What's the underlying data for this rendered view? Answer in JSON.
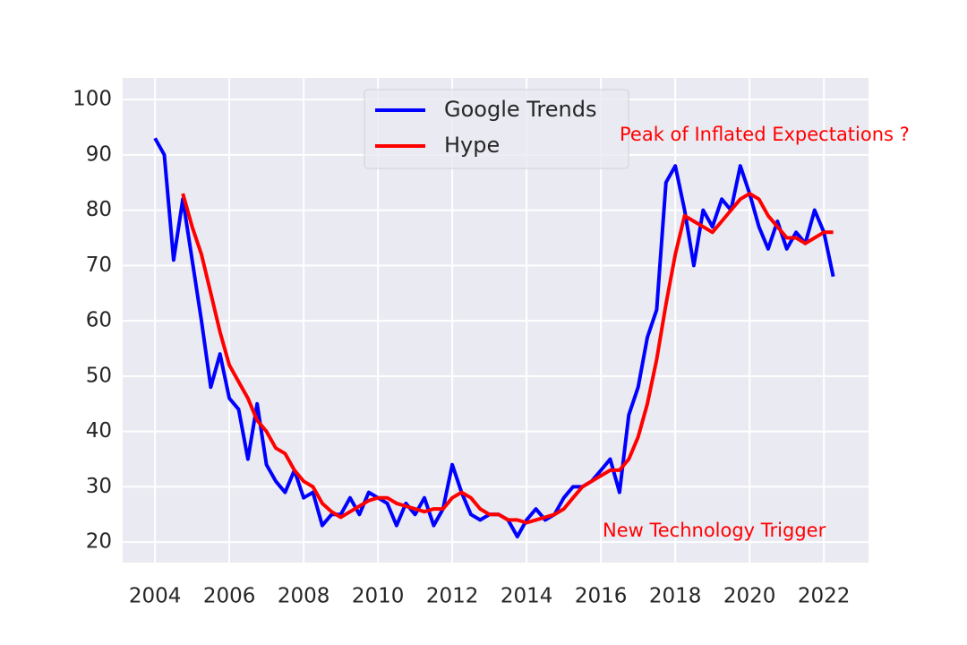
{
  "chart_data": {
    "type": "line",
    "x": [
      2004.0,
      2004.25,
      2004.5,
      2004.75,
      2005.0,
      2005.25,
      2005.5,
      2005.75,
      2006.0,
      2006.25,
      2006.5,
      2006.75,
      2007.0,
      2007.25,
      2007.5,
      2007.75,
      2008.0,
      2008.25,
      2008.5,
      2008.75,
      2009.0,
      2009.25,
      2009.5,
      2009.75,
      2010.0,
      2010.25,
      2010.5,
      2010.75,
      2011.0,
      2011.25,
      2011.5,
      2011.75,
      2012.0,
      2012.25,
      2012.5,
      2012.75,
      2013.0,
      2013.25,
      2013.5,
      2013.75,
      2014.0,
      2014.25,
      2014.5,
      2014.75,
      2015.0,
      2015.25,
      2015.5,
      2015.75,
      2016.0,
      2016.25,
      2016.5,
      2016.75,
      2017.0,
      2017.25,
      2017.5,
      2017.75,
      2018.0,
      2018.25,
      2018.5,
      2018.75,
      2019.0,
      2019.25,
      2019.5,
      2019.75,
      2020.0,
      2020.25,
      2020.5,
      2020.75,
      2021.0,
      2021.25,
      2021.5,
      2021.75,
      2022.0,
      2022.25
    ],
    "series": [
      {
        "name": "Google Trends",
        "color": "#0000ff",
        "values": [
          93,
          90,
          71,
          82,
          71,
          60,
          48,
          54,
          46,
          44,
          35,
          45,
          34,
          31,
          29,
          33,
          28,
          29,
          23,
          25,
          25,
          28,
          25,
          29,
          28,
          27,
          23,
          27,
          25,
          28,
          23,
          26,
          34,
          29,
          25,
          24,
          25,
          25,
          24,
          21,
          24,
          26,
          24,
          25,
          28,
          30,
          30,
          31,
          33,
          35,
          29,
          43,
          48,
          57,
          62,
          85,
          88,
          80,
          70,
          80,
          77,
          82,
          80,
          88,
          83,
          77,
          73,
          78,
          73,
          76,
          74,
          80,
          76,
          68
        ]
      },
      {
        "name": "Hype",
        "color": "#ff0000",
        "values": [
          null,
          null,
          null,
          83,
          77,
          72,
          65,
          58,
          52,
          49,
          46,
          42,
          40,
          37,
          36,
          33,
          31,
          30,
          27,
          25.5,
          24.5,
          25.5,
          26.5,
          27.5,
          28,
          28,
          27,
          26.5,
          26,
          25.5,
          26,
          26,
          28,
          29,
          28,
          26,
          25,
          25,
          24,
          24,
          23.5,
          24,
          24.5,
          25,
          26,
          28,
          30,
          31,
          32,
          33,
          33,
          35,
          39,
          45,
          53,
          63,
          72,
          79,
          78,
          77,
          76,
          78,
          80,
          82,
          83,
          82,
          79,
          77,
          75,
          75,
          74,
          75,
          76,
          76
        ]
      }
    ],
    "xlim": [
      2003.13,
      2023.2
    ],
    "xticks": [
      2004,
      2006,
      2008,
      2010,
      2012,
      2014,
      2016,
      2018,
      2020,
      2022
    ],
    "ylim": [
      16.3,
      103.9
    ],
    "yticks": [
      20,
      30,
      40,
      50,
      60,
      70,
      80,
      90,
      100
    ],
    "grid": true,
    "legend": "upper center",
    "annotations": [
      "Peak of Inflated Expectations ?",
      "New Technology Trigger"
    ]
  }
}
